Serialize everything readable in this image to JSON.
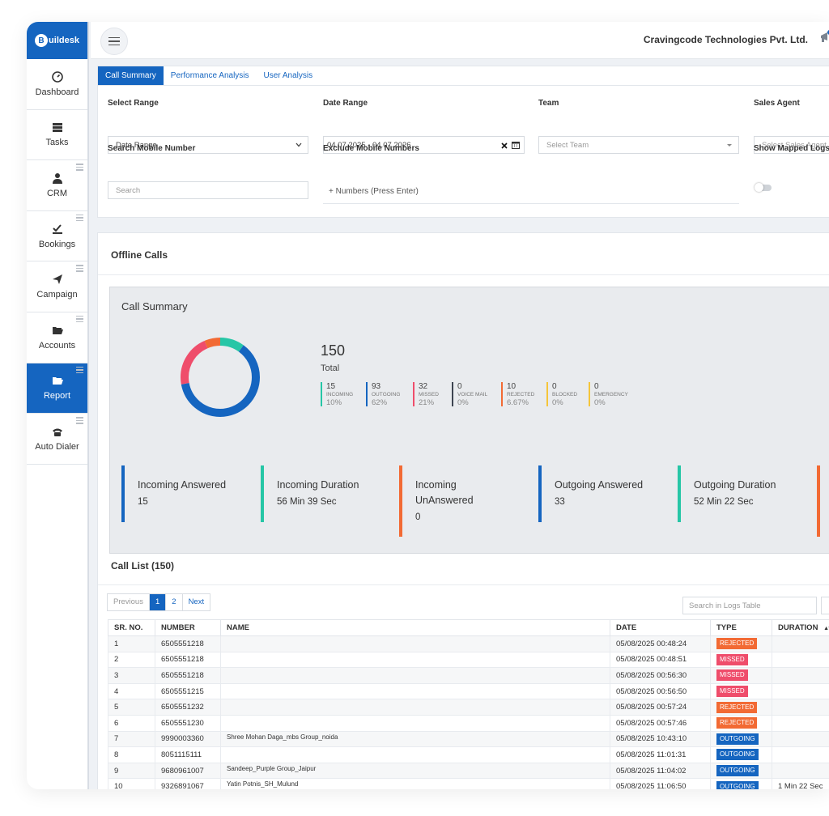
{
  "brand": {
    "logo_letter": "B",
    "logo_text": "uildesk"
  },
  "sidebar": {
    "items": [
      {
        "label": "Dashboard",
        "icon": "gauge-icon",
        "menu": false,
        "active": false
      },
      {
        "label": "Tasks",
        "icon": "tasks-icon",
        "menu": false,
        "active": false
      },
      {
        "label": "CRM",
        "icon": "user-icon",
        "menu": true,
        "active": false
      },
      {
        "label": "Bookings",
        "icon": "bookings-icon",
        "menu": true,
        "active": false
      },
      {
        "label": "Campaign",
        "icon": "paper-plane-icon",
        "menu": true,
        "active": false
      },
      {
        "label": "Accounts",
        "icon": "folder-open-icon",
        "menu": true,
        "active": false
      },
      {
        "label": "Report",
        "icon": "folder-open-icon",
        "menu": true,
        "active": true
      },
      {
        "label": "Auto Dialer",
        "icon": "phone-icon",
        "menu": true,
        "active": false
      }
    ]
  },
  "header": {
    "company": "Cravingcode Technologies Pvt. Ltd."
  },
  "tabs": [
    {
      "label": "Call Summary",
      "active": true
    },
    {
      "label": "Performance Analysis",
      "active": false
    },
    {
      "label": "User Analysis",
      "active": false
    }
  ],
  "filters": {
    "select_range": {
      "label": "Select Range",
      "value": "Date Range"
    },
    "date_range": {
      "label": "Date Range",
      "value": "04.07.2025 - 04.07.2026"
    },
    "team": {
      "label": "Team",
      "placeholder": "Select Team"
    },
    "sales_agent": {
      "label": "Sales Agent",
      "placeholder": "Select Sales Agent"
    },
    "search_mobile": {
      "label": "Search Mobile Number",
      "placeholder": "Search"
    },
    "exclude_mobile": {
      "label": "Exclude Mobile Numbers",
      "placeholder": "+ Numbers (Press Enter)"
    },
    "show_mapped": {
      "label": "Show Mapped Logs"
    }
  },
  "offline_calls": {
    "title": "Offline Calls"
  },
  "call_summary": {
    "title": "Call Summary",
    "total": "150",
    "total_label": "Total",
    "stats": [
      {
        "value": "15",
        "name": "INCOMING",
        "pct": "10%",
        "color": "#26c6a6"
      },
      {
        "value": "93",
        "name": "OUTGOING",
        "pct": "62%",
        "color": "#1565c0"
      },
      {
        "value": "32",
        "name": "MISSED",
        "pct": "21%",
        "color": "#ef4d6b"
      },
      {
        "value": "0",
        "name": "VOICE MAIL",
        "pct": "0%",
        "color": "#3d4450"
      },
      {
        "value": "10",
        "name": "REJECTED",
        "pct": "6.67%",
        "color": "#f26a34"
      },
      {
        "value": "0",
        "name": "BLOCKED",
        "pct": "0%",
        "color": "#f5c53a"
      },
      {
        "value": "0",
        "name": "EMERGENCY",
        "pct": "0%",
        "color": "#f5c53a"
      }
    ],
    "kpis": [
      {
        "title": "Incoming Answered",
        "value": "15",
        "color": "#1565c0"
      },
      {
        "title": "Incoming Duration",
        "value": "56 Min 39 Sec",
        "color": "#26c6a6"
      },
      {
        "title": "Incoming UnAnswered",
        "value": "0",
        "color": "#f26a34"
      },
      {
        "title": "Outgoing Answered",
        "value": "33",
        "color": "#1565c0"
      },
      {
        "title": "Outgoing Duration",
        "value": "52 Min 22 Sec",
        "color": "#26c6a6"
      }
    ]
  },
  "call_list": {
    "title": "Call List (150)",
    "pager": {
      "previous": "Previous",
      "page1": "1",
      "page2": "2",
      "next": "Next"
    },
    "search_placeholder": "Search in Logs Table",
    "columns": [
      "SR. NO.",
      "NUMBER",
      "NAME",
      "DATE",
      "TYPE",
      "DURATION"
    ],
    "sort_icon": "▲▼",
    "rows": [
      {
        "sr": "1",
        "number": "6505551218",
        "name": "",
        "date": "05/08/2025 00:48:24",
        "type": "REJECTED",
        "color": "#f26a34",
        "duration": ""
      },
      {
        "sr": "2",
        "number": "6505551218",
        "name": "",
        "date": "05/08/2025 00:48:51",
        "type": "MISSED",
        "color": "#ef4d6b",
        "duration": ""
      },
      {
        "sr": "3",
        "number": "6505551218",
        "name": "",
        "date": "05/08/2025 00:56:30",
        "type": "MISSED",
        "color": "#ef4d6b",
        "duration": ""
      },
      {
        "sr": "4",
        "number": "6505551215",
        "name": "",
        "date": "05/08/2025 00:56:50",
        "type": "MISSED",
        "color": "#ef4d6b",
        "duration": ""
      },
      {
        "sr": "5",
        "number": "6505551232",
        "name": "",
        "date": "05/08/2025 00:57:24",
        "type": "REJECTED",
        "color": "#f26a34",
        "duration": ""
      },
      {
        "sr": "6",
        "number": "6505551230",
        "name": "",
        "date": "05/08/2025 00:57:46",
        "type": "REJECTED",
        "color": "#f26a34",
        "duration": ""
      },
      {
        "sr": "7",
        "number": "9990003360",
        "name": "Shree Mohan Daga_mbs Group_noida",
        "date": "05/08/2025 10:43:10",
        "type": "OUTGOING",
        "color": "#1565c0",
        "duration": ""
      },
      {
        "sr": "8",
        "number": "8051115111",
        "name": "",
        "date": "05/08/2025 11:01:31",
        "type": "OUTGOING",
        "color": "#1565c0",
        "duration": ""
      },
      {
        "sr": "9",
        "number": "9680961007",
        "name": "Sandeep_Purple Group_Jaipur",
        "date": "05/08/2025 11:04:02",
        "type": "OUTGOING",
        "color": "#1565c0",
        "duration": ""
      },
      {
        "sr": "10",
        "number": "9326891067",
        "name": "Yatin Potnis_SH_Mulund",
        "date": "05/08/2025 11:06:50",
        "type": "OUTGOING",
        "color": "#1565c0",
        "duration": "1 Min 22 Sec"
      }
    ]
  },
  "donut": {
    "segments": [
      {
        "value": 15,
        "color": "#26c6a6"
      },
      {
        "value": 93,
        "color": "#1565c0"
      },
      {
        "value": 32,
        "color": "#ef4d6b"
      },
      {
        "value": 10,
        "color": "#f26a34"
      }
    ]
  }
}
